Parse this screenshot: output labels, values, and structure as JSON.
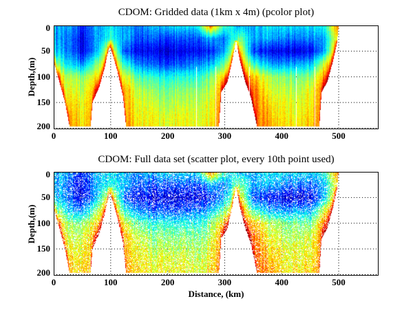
{
  "chart_data": [
    {
      "type": "heatmap",
      "title": "CDOM: Gridded data (1km x 4m) (pcolor plot)",
      "xlabel": "",
      "ylabel": "Depth,(m)",
      "xlim": [
        0,
        570
      ],
      "ylim": [
        202,
        0
      ],
      "xticks": [
        "0",
        "100",
        "200",
        "300",
        "400",
        "500"
      ],
      "yticks": [
        "0",
        "50",
        "100",
        "150",
        "200"
      ],
      "grid": "dotted",
      "colormap": "jet",
      "render": "pcolor"
    },
    {
      "type": "scatter",
      "title": "CDOM: Full data set (scatter plot, every 10th point used)",
      "xlabel": "Distance, (km)",
      "ylabel": "Depth,(m)",
      "xlim": [
        0,
        570
      ],
      "ylim": [
        202,
        0
      ],
      "xticks": [
        "0",
        "100",
        "200",
        "300",
        "400",
        "500"
      ],
      "yticks": [
        "0",
        "50",
        "100",
        "150",
        "200"
      ],
      "grid": "dotted",
      "colormap": "jet",
      "render": "scatter"
    }
  ],
  "field": {
    "value_scale": "colormap fraction (0 = dark blue, 1 = dark red)",
    "x_km": [
      0,
      25,
      50,
      75,
      100,
      125,
      150,
      175,
      200,
      225,
      250,
      275,
      300,
      325,
      350,
      375,
      400,
      425,
      450,
      475,
      500
    ],
    "depth_m": [
      0,
      25,
      50,
      75,
      100,
      125,
      150,
      175,
      200
    ],
    "values": [
      [
        0.3,
        0.3,
        0.15,
        0.3,
        0.35,
        0.3,
        0.25,
        0.3,
        0.35,
        0.35,
        0.35,
        0.8,
        0.45,
        0.3,
        0.3,
        0.35,
        0.35,
        0.35,
        0.35,
        0.4,
        0.8
      ],
      [
        0.3,
        0.25,
        0.1,
        0.3,
        0.4,
        0.3,
        0.2,
        0.2,
        0.2,
        0.2,
        0.2,
        0.3,
        0.25,
        0.5,
        0.3,
        0.3,
        0.25,
        0.25,
        0.25,
        0.3,
        0.7
      ],
      [
        0.35,
        0.25,
        0.1,
        0.3,
        0.7,
        0.2,
        0.12,
        0.1,
        0.1,
        0.1,
        0.12,
        0.15,
        0.3,
        0.7,
        0.2,
        0.12,
        0.1,
        0.1,
        0.12,
        0.3,
        0.85
      ],
      [
        0.55,
        0.35,
        0.25,
        0.5,
        0.8,
        0.4,
        0.25,
        0.2,
        0.2,
        0.2,
        0.25,
        0.3,
        0.5,
        0.8,
        0.45,
        0.3,
        0.25,
        0.3,
        0.3,
        0.6,
        0.9
      ],
      [
        0.75,
        0.55,
        0.5,
        0.65,
        0.85,
        0.6,
        0.45,
        0.4,
        0.4,
        0.4,
        0.4,
        0.5,
        0.7,
        0.85,
        0.7,
        0.55,
        0.5,
        0.5,
        0.5,
        0.75,
        0.9
      ],
      [
        0.8,
        0.6,
        0.55,
        0.75,
        0.85,
        0.7,
        0.55,
        0.5,
        0.5,
        0.5,
        0.5,
        0.55,
        0.8,
        0.85,
        0.8,
        0.6,
        0.55,
        0.55,
        0.6,
        0.8,
        0.9
      ],
      [
        0.8,
        0.65,
        0.6,
        0.75,
        0.85,
        0.7,
        0.6,
        0.55,
        0.55,
        0.55,
        0.55,
        0.6,
        0.8,
        0.85,
        0.8,
        0.65,
        0.6,
        0.6,
        0.62,
        0.8,
        0.9
      ],
      [
        0.8,
        0.7,
        0.62,
        0.75,
        0.85,
        0.72,
        0.62,
        0.6,
        0.6,
        0.6,
        0.58,
        0.62,
        0.8,
        0.85,
        0.8,
        0.7,
        0.62,
        0.62,
        0.65,
        0.8,
        0.9
      ],
      [
        0.8,
        0.72,
        0.65,
        0.75,
        0.85,
        0.75,
        0.65,
        0.62,
        0.62,
        0.62,
        0.6,
        0.65,
        0.8,
        0.85,
        0.8,
        0.72,
        0.65,
        0.65,
        0.68,
        0.8,
        0.9
      ]
    ],
    "max_depth_profile": [
      [
        0,
        70
      ],
      [
        10,
        110
      ],
      [
        20,
        150
      ],
      [
        28,
        198
      ],
      [
        65,
        198
      ],
      [
        68,
        150
      ],
      [
        80,
        120
      ],
      [
        90,
        80
      ],
      [
        96,
        48
      ],
      [
        99,
        42
      ],
      [
        103,
        55
      ],
      [
        112,
        90
      ],
      [
        122,
        140
      ],
      [
        127,
        198
      ],
      [
        290,
        198
      ],
      [
        294,
        130
      ],
      [
        305,
        110
      ],
      [
        314,
        65
      ],
      [
        320,
        28
      ],
      [
        326,
        65
      ],
      [
        336,
        110
      ],
      [
        346,
        140
      ],
      [
        357,
        198
      ],
      [
        466,
        198
      ],
      [
        470,
        130
      ],
      [
        480,
        110
      ],
      [
        490,
        70
      ],
      [
        497,
        35
      ],
      [
        500,
        0
      ]
    ]
  }
}
